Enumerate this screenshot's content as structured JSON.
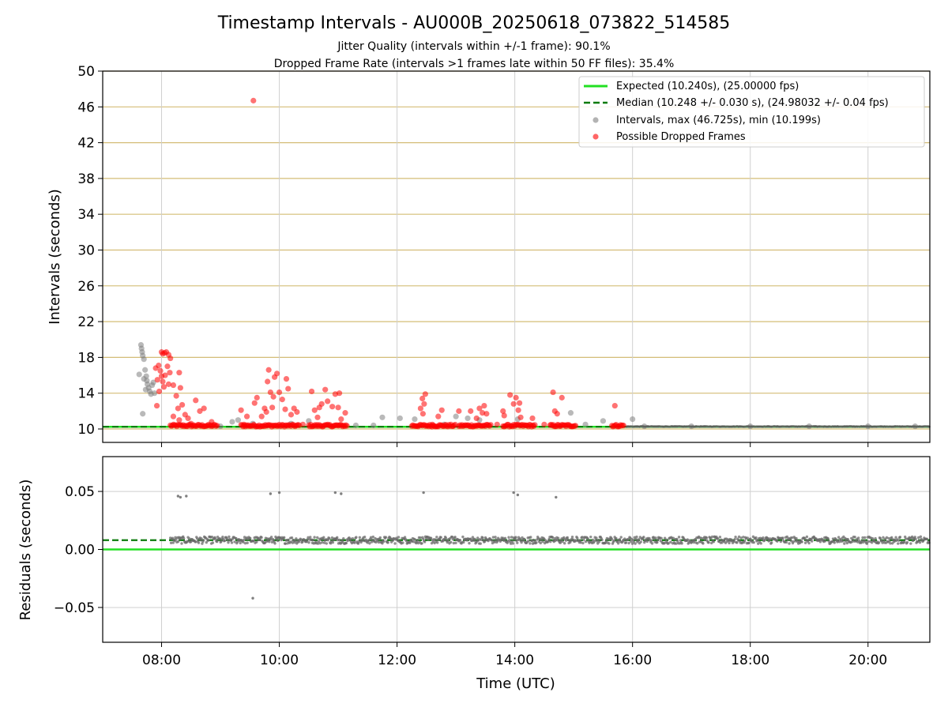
{
  "chart_data": [
    {
      "type": "scatter",
      "title": "Timestamp Intervals - AU000B_20250618_073822_514585",
      "subtitle_lines": [
        "Jitter Quality (intervals within +/-1 frame): 90.1%",
        "Dropped Frame Rate (intervals >1 frames late within 50 FF files): 35.4%"
      ],
      "xlabel": "",
      "ylabel": "Intervals (seconds)",
      "xlim_hours": [
        7.0,
        21.05
      ],
      "ylim": [
        8.5,
        50
      ],
      "yticks": [
        10,
        14,
        18,
        22,
        26,
        30,
        34,
        38,
        42,
        46,
        50
      ],
      "xticks": [
        "08:00",
        "10:00",
        "12:00",
        "14:00",
        "16:00",
        "18:00",
        "20:00"
      ],
      "xticks_hours": [
        8,
        10,
        12,
        14,
        16,
        18,
        20
      ],
      "grid": {
        "horizontal": "goldenrod",
        "vertical": "lightgray"
      },
      "expected_interval": 10.24,
      "median_interval": 10.248,
      "legend_position": "top-right",
      "legend": [
        "Expected (10.240s), (25.00000 fps)",
        "Median (10.248 +/- 0.030 s), (24.98032 +/- 0.04 fps)",
        "Intervals, max (46.725s), min (10.199s)",
        "Possible Dropped Frames"
      ],
      "series": [
        {
          "name": "Intervals, max (46.725s), min (10.199s)",
          "style": "gray-dots",
          "points": [
            [
              7.65,
              19.4
            ],
            [
              7.66,
              19.0
            ],
            [
              7.67,
              18.6
            ],
            [
              7.68,
              18.2
            ],
            [
              7.7,
              17.8
            ],
            [
              7.62,
              16.1
            ],
            [
              7.72,
              16.6
            ],
            [
              7.74,
              15.9
            ],
            [
              7.75,
              15.4
            ],
            [
              7.76,
              15.0
            ],
            [
              7.78,
              14.6
            ],
            [
              7.8,
              14.2
            ],
            [
              7.82,
              13.9
            ],
            [
              7.84,
              14.9
            ],
            [
              7.7,
              15.6
            ],
            [
              7.73,
              14.4
            ],
            [
              7.68,
              11.7
            ],
            [
              7.86,
              15.2
            ],
            [
              7.88,
              14.0
            ],
            [
              9.2,
              10.8
            ],
            [
              9.3,
              11.0
            ],
            [
              9.55,
              10.6
            ],
            [
              10.5,
              10.9
            ],
            [
              11.3,
              10.4
            ],
            [
              11.75,
              11.3
            ],
            [
              12.05,
              11.2
            ],
            [
              12.3,
              11.1
            ],
            [
              13.0,
              11.4
            ],
            [
              13.2,
              11.2
            ],
            [
              13.4,
              11.0
            ],
            [
              14.05,
              11.1
            ],
            [
              14.95,
              11.8
            ],
            [
              15.5,
              10.9
            ],
            [
              16.0,
              11.1
            ],
            [
              15.2,
              10.5
            ],
            [
              12.8,
              10.5
            ],
            [
              11.6,
              10.4
            ],
            [
              10.2,
              10.6
            ],
            [
              9.0,
              10.3
            ],
            [
              16.2,
              10.3
            ],
            [
              17.0,
              10.3
            ],
            [
              18.0,
              10.3
            ],
            [
              19.0,
              10.3
            ],
            [
              20.0,
              10.3
            ],
            [
              20.8,
              10.3
            ]
          ]
        },
        {
          "name": "Possible Dropped Frames",
          "style": "red-dots",
          "points": [
            [
              8.0,
              18.6
            ],
            [
              8.02,
              18.4
            ],
            [
              8.05,
              18.5
            ],
            [
              8.08,
              18.6
            ],
            [
              8.12,
              18.3
            ],
            [
              8.15,
              17.9
            ],
            [
              7.95,
              17.1
            ],
            [
              7.98,
              16.5
            ],
            [
              8.0,
              15.9
            ],
            [
              8.02,
              15.3
            ],
            [
              8.04,
              14.7
            ],
            [
              7.96,
              14.2
            ],
            [
              8.06,
              16.0
            ],
            [
              8.1,
              17.0
            ],
            [
              8.14,
              16.3
            ],
            [
              7.93,
              15.5
            ],
            [
              7.9,
              16.8
            ],
            [
              8.12,
              15.0
            ],
            [
              7.92,
              12.6
            ],
            [
              8.2,
              14.9
            ],
            [
              8.25,
              13.7
            ],
            [
              8.28,
              12.3
            ],
            [
              8.3,
              16.3
            ],
            [
              8.32,
              14.6
            ],
            [
              8.35,
              12.7
            ],
            [
              8.4,
              11.6
            ],
            [
              8.45,
              11.2
            ],
            [
              8.58,
              13.2
            ],
            [
              8.65,
              12.0
            ],
            [
              8.72,
              12.3
            ],
            [
              8.85,
              10.8
            ],
            [
              8.2,
              11.4
            ],
            [
              8.3,
              11.0
            ],
            [
              9.35,
              12.1
            ],
            [
              9.45,
              11.4
            ],
            [
              9.58,
              12.9
            ],
            [
              9.62,
              13.5
            ],
            [
              9.7,
              11.4
            ],
            [
              9.75,
              12.3
            ],
            [
              9.8,
              15.3
            ],
            [
              9.82,
              16.6
            ],
            [
              9.85,
              14.1
            ],
            [
              9.9,
              13.6
            ],
            [
              9.92,
              15.8
            ],
            [
              9.96,
              16.2
            ],
            [
              10.0,
              14.1
            ],
            [
              10.05,
              13.3
            ],
            [
              10.1,
              12.2
            ],
            [
              10.12,
              15.6
            ],
            [
              10.15,
              14.5
            ],
            [
              10.2,
              11.6
            ],
            [
              10.25,
              12.3
            ],
            [
              9.88,
              12.4
            ],
            [
              9.78,
              11.9
            ],
            [
              10.3,
              11.9
            ],
            [
              9.56,
              46.7
            ],
            [
              10.55,
              14.2
            ],
            [
              10.6,
              12.1
            ],
            [
              10.65,
              11.3
            ],
            [
              10.72,
              12.8
            ],
            [
              10.78,
              14.4
            ],
            [
              10.82,
              13.1
            ],
            [
              10.9,
              12.5
            ],
            [
              10.95,
              13.9
            ],
            [
              11.0,
              12.4
            ],
            [
              11.02,
              14.0
            ],
            [
              11.05,
              11.1
            ],
            [
              11.12,
              11.8
            ],
            [
              10.68,
              12.4
            ],
            [
              12.4,
              12.3
            ],
            [
              12.43,
              13.4
            ],
            [
              12.46,
              12.8
            ],
            [
              12.48,
              13.9
            ],
            [
              12.44,
              11.7
            ],
            [
              12.7,
              11.4
            ],
            [
              12.76,
              12.1
            ],
            [
              13.05,
              12.0
            ],
            [
              13.25,
              12.0
            ],
            [
              13.35,
              11.2
            ],
            [
              13.45,
              11.8
            ],
            [
              13.48,
              12.6
            ],
            [
              13.52,
              11.7
            ],
            [
              13.4,
              12.3
            ],
            [
              13.8,
              12.0
            ],
            [
              13.82,
              11.5
            ],
            [
              13.92,
              13.8
            ],
            [
              13.98,
              12.8
            ],
            [
              14.02,
              13.5
            ],
            [
              14.06,
              12.1
            ],
            [
              14.1,
              11.3
            ],
            [
              14.08,
              12.9
            ],
            [
              14.3,
              11.2
            ],
            [
              14.65,
              14.1
            ],
            [
              14.68,
              12.0
            ],
            [
              14.72,
              11.7
            ],
            [
              14.8,
              13.5
            ],
            [
              15.7,
              12.6
            ],
            [
              8.5,
              10.6
            ],
            [
              9.4,
              10.5
            ],
            [
              10.4,
              10.5
            ],
            [
              12.6,
              10.5
            ],
            [
              13.7,
              10.5
            ],
            [
              14.5,
              10.5
            ]
          ]
        }
      ],
      "dense_drop_bands_hours": [
        [
          8.15,
          8.95
        ],
        [
          9.35,
          10.35
        ],
        [
          10.5,
          11.15
        ],
        [
          12.25,
          13.0
        ],
        [
          13.05,
          13.6
        ],
        [
          13.8,
          14.35
        ],
        [
          14.6,
          15.05
        ],
        [
          15.65,
          15.85
        ]
      ]
    },
    {
      "type": "scatter",
      "xlabel": "Time (UTC)",
      "ylabel": "Residuals (seconds)",
      "xlim_hours": [
        7.0,
        21.05
      ],
      "ylim": [
        -0.08,
        0.08
      ],
      "yticks": [
        "0.05",
        "0.00",
        "−0.05"
      ],
      "yticks_values": [
        0.05,
        0.0,
        -0.05
      ],
      "xticks": [
        "08:00",
        "10:00",
        "12:00",
        "14:00",
        "16:00",
        "18:00",
        "20:00"
      ],
      "xticks_hours": [
        8,
        10,
        12,
        14,
        16,
        18,
        20
      ],
      "expected_residual": 0.0,
      "median_residual": 0.008,
      "residual_band": {
        "start_hour": 8.15,
        "end_hour": 21.05,
        "center": 0.008,
        "spread": 0.003
      },
      "outliers": [
        [
          8.28,
          0.046
        ],
        [
          8.32,
          0.045
        ],
        [
          8.42,
          0.046
        ],
        [
          9.55,
          -0.042
        ],
        [
          9.85,
          0.048
        ],
        [
          10.0,
          0.049
        ],
        [
          10.95,
          0.049
        ],
        [
          11.05,
          0.048
        ],
        [
          12.45,
          0.049
        ],
        [
          13.98,
          0.049
        ],
        [
          14.05,
          0.047
        ],
        [
          14.7,
          0.045
        ]
      ]
    }
  ]
}
